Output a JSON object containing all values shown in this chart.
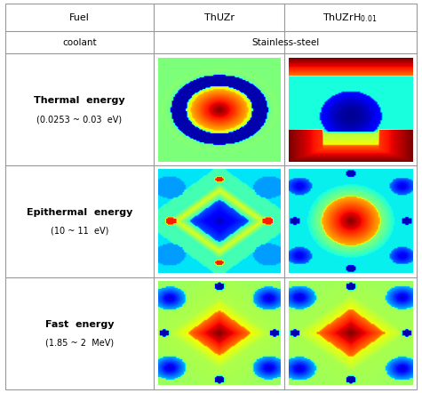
{
  "col_headers": [
    "Fuel",
    "ThUZr",
    "ThUZrH_{0.01}"
  ],
  "row2_header": "coolant",
  "row2_val": "Stainless-steel",
  "row_labels": [
    [
      "Thermal  energy",
      "(0.0253 ~ 0.03  eV)"
    ],
    [
      "Epithermal  energy",
      "(10 ~ 11  eV)"
    ],
    [
      "Fast  energy",
      "(1.85 ~ 2  MeV)"
    ]
  ],
  "bg_color": "#ffffff",
  "border_color": "#999999"
}
